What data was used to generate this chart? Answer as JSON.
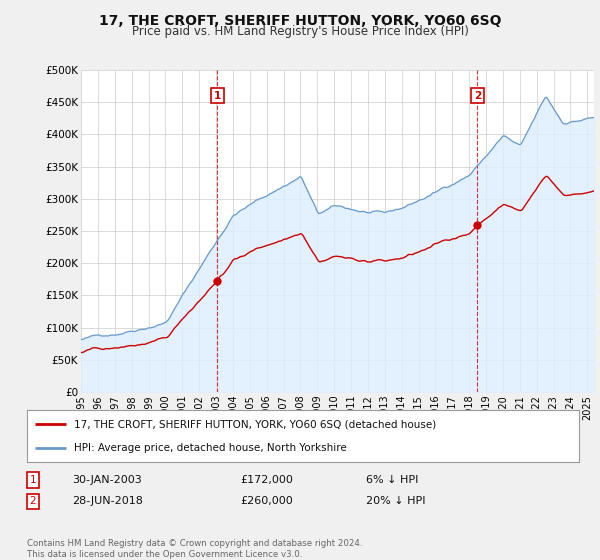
{
  "title": "17, THE CROFT, SHERIFF HUTTON, YORK, YO60 6SQ",
  "subtitle": "Price paid vs. HM Land Registry's House Price Index (HPI)",
  "ylabel_ticks": [
    "£0",
    "£50K",
    "£100K",
    "£150K",
    "£200K",
    "£250K",
    "£300K",
    "£350K",
    "£400K",
    "£450K",
    "£500K"
  ],
  "ytick_vals": [
    0,
    50000,
    100000,
    150000,
    200000,
    250000,
    300000,
    350000,
    400000,
    450000,
    500000
  ],
  "xlim_start": 1995.0,
  "xlim_end": 2025.4,
  "ylim": [
    0,
    500000
  ],
  "sale1_t": 2003.08,
  "sale1_price": 172000,
  "sale2_t": 2018.49,
  "sale2_price": 260000,
  "legend_line1": "17, THE CROFT, SHERIFF HUTTON, YORK, YO60 6SQ (detached house)",
  "legend_line2": "HPI: Average price, detached house, North Yorkshire",
  "footnote": "Contains HM Land Registry data © Crown copyright and database right 2024.\nThis data is licensed under the Open Government Licence v3.0.",
  "red_color": "#cc0000",
  "blue_color": "#6699cc",
  "blue_fill": "#ddeeff",
  "background_color": "#f0f0f0",
  "plot_bg_color": "#ffffff",
  "grid_color": "#cccccc",
  "label_box_color": "#cc0000"
}
